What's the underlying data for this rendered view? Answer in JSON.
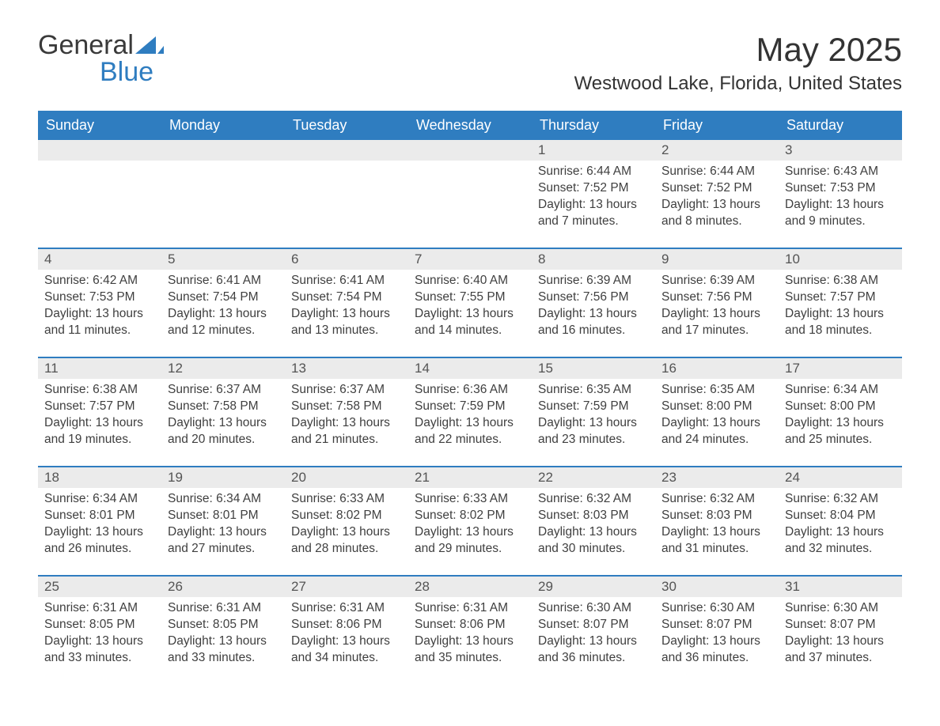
{
  "brand": {
    "word1": "General",
    "word2": "Blue",
    "accent_color": "#2f7dc0"
  },
  "title": "May 2025",
  "location": "Westwood Lake, Florida, United States",
  "colors": {
    "header_bg": "#2f7dc0",
    "header_text": "#ffffff",
    "daynum_bg": "#ebebeb",
    "text": "#3a3a3a",
    "row_border": "#2f7dc0",
    "page_bg": "#ffffff"
  },
  "fonts": {
    "title_size_pt": 32,
    "location_size_pt": 18,
    "header_size_pt": 14,
    "body_size_pt": 12
  },
  "day_headers": [
    "Sunday",
    "Monday",
    "Tuesday",
    "Wednesday",
    "Thursday",
    "Friday",
    "Saturday"
  ],
  "weeks": [
    [
      null,
      null,
      null,
      null,
      {
        "d": "1",
        "sr": "Sunrise: 6:44 AM",
        "ss": "Sunset: 7:52 PM",
        "dl1": "Daylight: 13 hours",
        "dl2": "and 7 minutes."
      },
      {
        "d": "2",
        "sr": "Sunrise: 6:44 AM",
        "ss": "Sunset: 7:52 PM",
        "dl1": "Daylight: 13 hours",
        "dl2": "and 8 minutes."
      },
      {
        "d": "3",
        "sr": "Sunrise: 6:43 AM",
        "ss": "Sunset: 7:53 PM",
        "dl1": "Daylight: 13 hours",
        "dl2": "and 9 minutes."
      }
    ],
    [
      {
        "d": "4",
        "sr": "Sunrise: 6:42 AM",
        "ss": "Sunset: 7:53 PM",
        "dl1": "Daylight: 13 hours",
        "dl2": "and 11 minutes."
      },
      {
        "d": "5",
        "sr": "Sunrise: 6:41 AM",
        "ss": "Sunset: 7:54 PM",
        "dl1": "Daylight: 13 hours",
        "dl2": "and 12 minutes."
      },
      {
        "d": "6",
        "sr": "Sunrise: 6:41 AM",
        "ss": "Sunset: 7:54 PM",
        "dl1": "Daylight: 13 hours",
        "dl2": "and 13 minutes."
      },
      {
        "d": "7",
        "sr": "Sunrise: 6:40 AM",
        "ss": "Sunset: 7:55 PM",
        "dl1": "Daylight: 13 hours",
        "dl2": "and 14 minutes."
      },
      {
        "d": "8",
        "sr": "Sunrise: 6:39 AM",
        "ss": "Sunset: 7:56 PM",
        "dl1": "Daylight: 13 hours",
        "dl2": "and 16 minutes."
      },
      {
        "d": "9",
        "sr": "Sunrise: 6:39 AM",
        "ss": "Sunset: 7:56 PM",
        "dl1": "Daylight: 13 hours",
        "dl2": "and 17 minutes."
      },
      {
        "d": "10",
        "sr": "Sunrise: 6:38 AM",
        "ss": "Sunset: 7:57 PM",
        "dl1": "Daylight: 13 hours",
        "dl2": "and 18 minutes."
      }
    ],
    [
      {
        "d": "11",
        "sr": "Sunrise: 6:38 AM",
        "ss": "Sunset: 7:57 PM",
        "dl1": "Daylight: 13 hours",
        "dl2": "and 19 minutes."
      },
      {
        "d": "12",
        "sr": "Sunrise: 6:37 AM",
        "ss": "Sunset: 7:58 PM",
        "dl1": "Daylight: 13 hours",
        "dl2": "and 20 minutes."
      },
      {
        "d": "13",
        "sr": "Sunrise: 6:37 AM",
        "ss": "Sunset: 7:58 PM",
        "dl1": "Daylight: 13 hours",
        "dl2": "and 21 minutes."
      },
      {
        "d": "14",
        "sr": "Sunrise: 6:36 AM",
        "ss": "Sunset: 7:59 PM",
        "dl1": "Daylight: 13 hours",
        "dl2": "and 22 minutes."
      },
      {
        "d": "15",
        "sr": "Sunrise: 6:35 AM",
        "ss": "Sunset: 7:59 PM",
        "dl1": "Daylight: 13 hours",
        "dl2": "and 23 minutes."
      },
      {
        "d": "16",
        "sr": "Sunrise: 6:35 AM",
        "ss": "Sunset: 8:00 PM",
        "dl1": "Daylight: 13 hours",
        "dl2": "and 24 minutes."
      },
      {
        "d": "17",
        "sr": "Sunrise: 6:34 AM",
        "ss": "Sunset: 8:00 PM",
        "dl1": "Daylight: 13 hours",
        "dl2": "and 25 minutes."
      }
    ],
    [
      {
        "d": "18",
        "sr": "Sunrise: 6:34 AM",
        "ss": "Sunset: 8:01 PM",
        "dl1": "Daylight: 13 hours",
        "dl2": "and 26 minutes."
      },
      {
        "d": "19",
        "sr": "Sunrise: 6:34 AM",
        "ss": "Sunset: 8:01 PM",
        "dl1": "Daylight: 13 hours",
        "dl2": "and 27 minutes."
      },
      {
        "d": "20",
        "sr": "Sunrise: 6:33 AM",
        "ss": "Sunset: 8:02 PM",
        "dl1": "Daylight: 13 hours",
        "dl2": "and 28 minutes."
      },
      {
        "d": "21",
        "sr": "Sunrise: 6:33 AM",
        "ss": "Sunset: 8:02 PM",
        "dl1": "Daylight: 13 hours",
        "dl2": "and 29 minutes."
      },
      {
        "d": "22",
        "sr": "Sunrise: 6:32 AM",
        "ss": "Sunset: 8:03 PM",
        "dl1": "Daylight: 13 hours",
        "dl2": "and 30 minutes."
      },
      {
        "d": "23",
        "sr": "Sunrise: 6:32 AM",
        "ss": "Sunset: 8:03 PM",
        "dl1": "Daylight: 13 hours",
        "dl2": "and 31 minutes."
      },
      {
        "d": "24",
        "sr": "Sunrise: 6:32 AM",
        "ss": "Sunset: 8:04 PM",
        "dl1": "Daylight: 13 hours",
        "dl2": "and 32 minutes."
      }
    ],
    [
      {
        "d": "25",
        "sr": "Sunrise: 6:31 AM",
        "ss": "Sunset: 8:05 PM",
        "dl1": "Daylight: 13 hours",
        "dl2": "and 33 minutes."
      },
      {
        "d": "26",
        "sr": "Sunrise: 6:31 AM",
        "ss": "Sunset: 8:05 PM",
        "dl1": "Daylight: 13 hours",
        "dl2": "and 33 minutes."
      },
      {
        "d": "27",
        "sr": "Sunrise: 6:31 AM",
        "ss": "Sunset: 8:06 PM",
        "dl1": "Daylight: 13 hours",
        "dl2": "and 34 minutes."
      },
      {
        "d": "28",
        "sr": "Sunrise: 6:31 AM",
        "ss": "Sunset: 8:06 PM",
        "dl1": "Daylight: 13 hours",
        "dl2": "and 35 minutes."
      },
      {
        "d": "29",
        "sr": "Sunrise: 6:30 AM",
        "ss": "Sunset: 8:07 PM",
        "dl1": "Daylight: 13 hours",
        "dl2": "and 36 minutes."
      },
      {
        "d": "30",
        "sr": "Sunrise: 6:30 AM",
        "ss": "Sunset: 8:07 PM",
        "dl1": "Daylight: 13 hours",
        "dl2": "and 36 minutes."
      },
      {
        "d": "31",
        "sr": "Sunrise: 6:30 AM",
        "ss": "Sunset: 8:07 PM",
        "dl1": "Daylight: 13 hours",
        "dl2": "and 37 minutes."
      }
    ]
  ]
}
